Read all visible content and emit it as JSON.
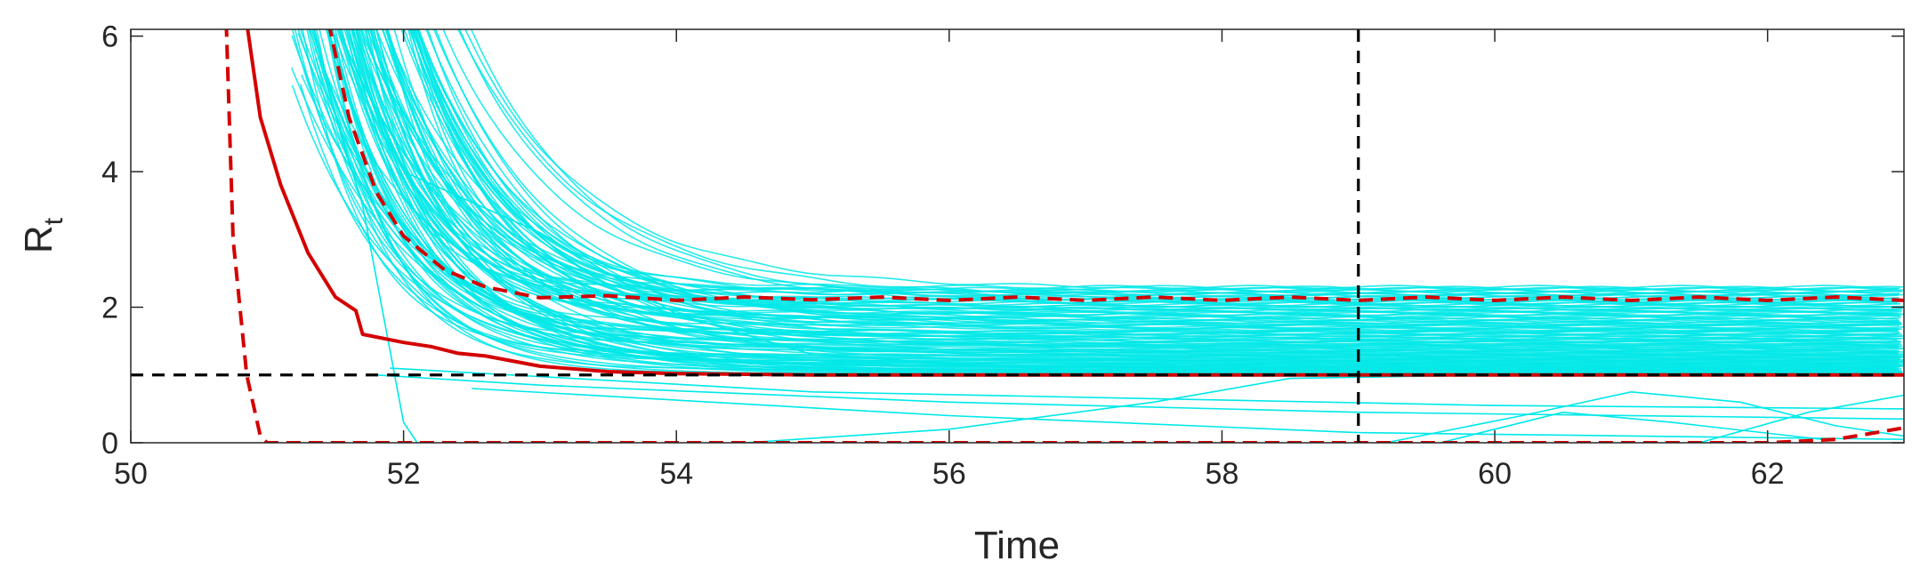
{
  "chart_data": {
    "type": "line",
    "title": "",
    "xlabel": "Time",
    "ylabel_main": "R",
    "ylabel_sub": "t",
    "xlim": [
      50,
      63
    ],
    "ylim": [
      0,
      6.1
    ],
    "xticks": [
      50,
      52,
      54,
      56,
      58,
      60,
      62
    ],
    "yticks": [
      0,
      2,
      4,
      6
    ],
    "xtick_labels": [
      "50",
      "52",
      "54",
      "56",
      "58",
      "60",
      "62"
    ],
    "ytick_labels": [
      "0",
      "2",
      "4",
      "6"
    ],
    "grid": false,
    "legend": "none",
    "reference_lines": [
      {
        "orientation": "horizontal",
        "value": 1,
        "color": "#000000",
        "style": "dashed"
      },
      {
        "orientation": "vertical",
        "value": 59,
        "color": "#000000",
        "style": "dashed"
      }
    ],
    "series": [
      {
        "role": "median",
        "color": "#d40000",
        "style": "solid",
        "x": [
          50.85,
          50.95,
          51.1,
          51.3,
          51.5,
          51.65,
          51.7,
          52.0,
          52.2,
          52.4,
          52.6,
          53.0,
          53.5,
          54.0,
          55.0,
          56.0,
          58.0,
          60.0,
          63.0
        ],
        "y": [
          6.2,
          4.8,
          3.8,
          2.8,
          2.15,
          1.95,
          1.6,
          1.48,
          1.42,
          1.32,
          1.28,
          1.13,
          1.05,
          1.02,
          1.0,
          1.0,
          1.0,
          1.0,
          1.0
        ]
      },
      {
        "role": "upper-bound",
        "color": "#d40000",
        "style": "dashed",
        "x": [
          51.45,
          51.6,
          51.8,
          52.0,
          52.3,
          52.6,
          53.0,
          53.5,
          54.0,
          54.5,
          55.0,
          55.5,
          56.0,
          56.5,
          57.0,
          57.5,
          58.0,
          58.5,
          59.0,
          59.5,
          60.0,
          60.5,
          61.0,
          61.5,
          62.0,
          62.5,
          63.0
        ],
        "y": [
          6.2,
          4.8,
          3.7,
          3.05,
          2.55,
          2.3,
          2.14,
          2.17,
          2.1,
          2.15,
          2.11,
          2.15,
          2.1,
          2.15,
          2.1,
          2.15,
          2.1,
          2.15,
          2.1,
          2.15,
          2.1,
          2.15,
          2.1,
          2.15,
          2.1,
          2.15,
          2.1
        ]
      },
      {
        "role": "lower-bound",
        "color": "#d40000",
        "style": "dashed",
        "x": [
          50.7,
          50.75,
          50.85,
          50.95,
          51.0,
          52.0,
          54.0,
          56.0,
          58.0,
          60.0,
          62.0,
          62.5,
          63.0
        ],
        "y": [
          6.2,
          3.0,
          1.0,
          0.1,
          0.0,
          0.0,
          0.0,
          0.0,
          0.0,
          0.0,
          0.0,
          0.05,
          0.22
        ]
      }
    ],
    "ensemble": {
      "color": "#00e8e8",
      "note": "many cyan sample trajectories between the bounds"
    }
  }
}
